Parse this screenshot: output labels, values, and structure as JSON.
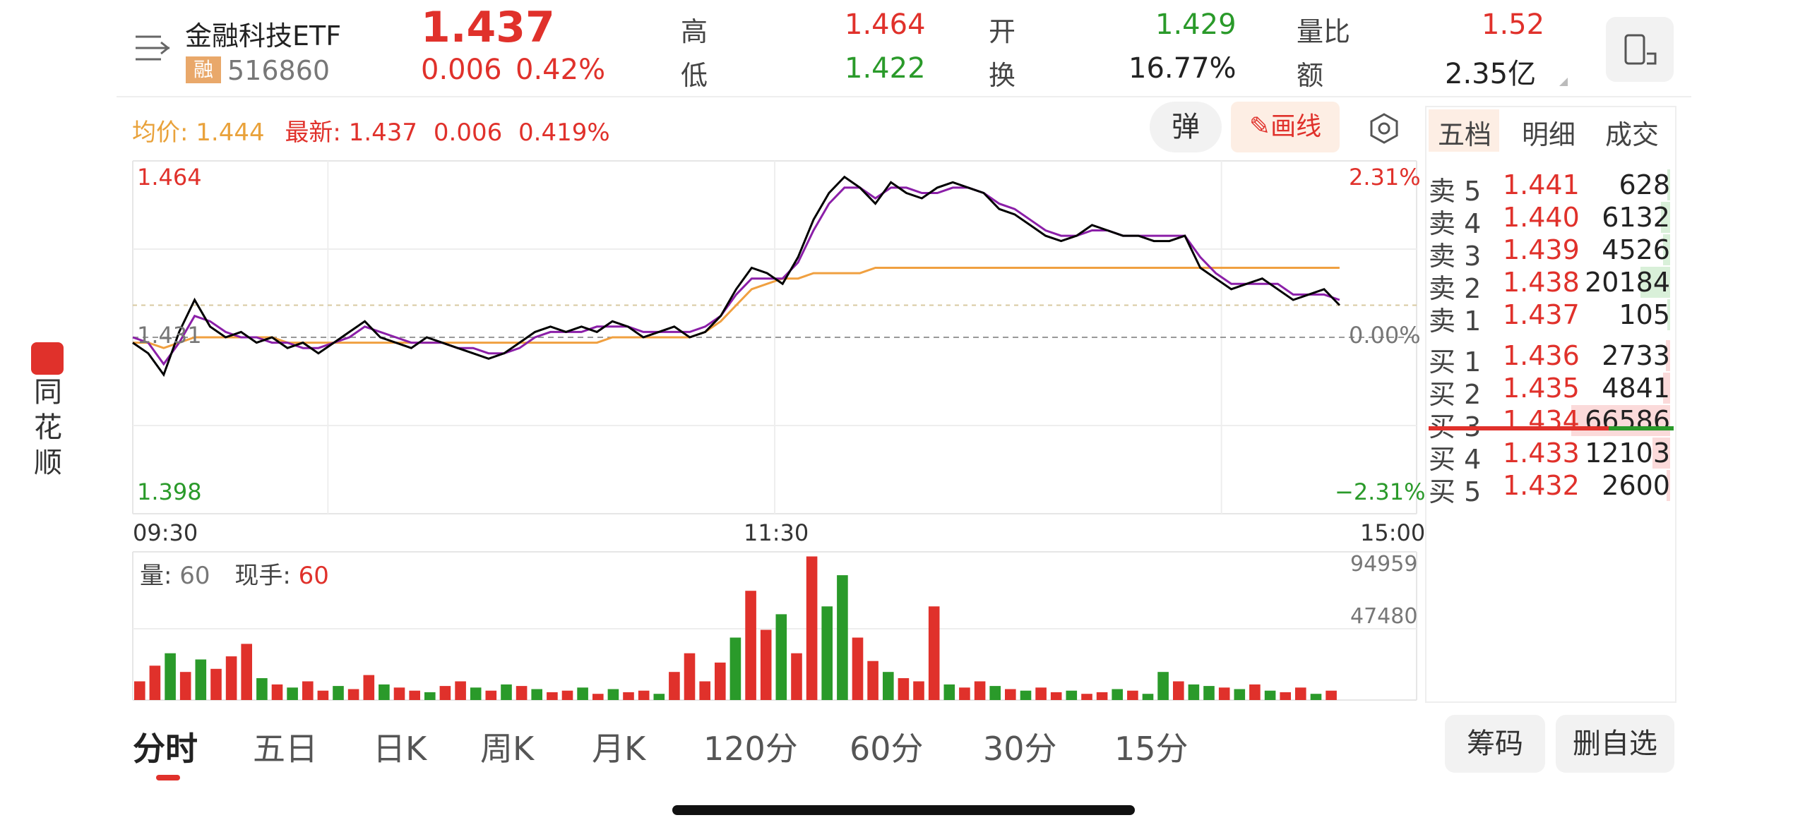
{
  "security": {
    "name": "金融科技ETF",
    "tag": "融",
    "code": "516860",
    "price": "1.437",
    "change": "0.006",
    "change_pct": "0.42%"
  },
  "quote": {
    "high_label": "高",
    "high": "1.464",
    "low_label": "低",
    "low": "1.422",
    "open_label": "开",
    "open": "1.429",
    "turnover_label": "换",
    "turnover": "16.77%",
    "vol_ratio_label": "量比",
    "vol_ratio": "1.52",
    "amount_label": "额",
    "amount": "2.35亿"
  },
  "info_line": {
    "avg_label": "均价:",
    "avg": "1.444",
    "latest_label": "最新:",
    "latest": "1.437",
    "chg": "0.006",
    "chg_pct": "0.419%"
  },
  "toolbar": {
    "danmu_label": "弹",
    "draw_label": "画线"
  },
  "axis": {
    "top_price": "1.464",
    "ref_price": "1.431",
    "bottom_price": "1.398",
    "top_pct": "2.31%",
    "ref_pct": "0.00%",
    "bottom_pct": "−2.31%",
    "time_start": "09:30",
    "time_mid": "11:30",
    "time_end": "15:00",
    "vol_max": "94959",
    "vol_mid": "47480"
  },
  "volume_info": {
    "vol_label": "量:",
    "vol": "60",
    "hand_label": "现手:",
    "hand": "60"
  },
  "orderbook": {
    "tabs": [
      "五档",
      "明细",
      "成交"
    ],
    "sells": [
      {
        "label": "卖 5",
        "price": "1.441",
        "vol": "628"
      },
      {
        "label": "卖 4",
        "price": "1.440",
        "vol": "6132"
      },
      {
        "label": "卖 3",
        "price": "1.439",
        "vol": "4526"
      },
      {
        "label": "卖 2",
        "price": "1.438",
        "vol": "20184"
      },
      {
        "label": "卖 1",
        "price": "1.437",
        "vol": "105"
      }
    ],
    "buys": [
      {
        "label": "买 1",
        "price": "1.436",
        "vol": "2733"
      },
      {
        "label": "买 2",
        "price": "1.435",
        "vol": "4841"
      },
      {
        "label": "买 3",
        "price": "1.434",
        "vol": "66586"
      },
      {
        "label": "买 4",
        "price": "1.433",
        "vol": "12103"
      },
      {
        "label": "买 5",
        "price": "1.432",
        "vol": "2600"
      }
    ]
  },
  "period_tabs": [
    "分时",
    "五日",
    "日K",
    "周K",
    "月K",
    "120分",
    "60分",
    "30分",
    "15分"
  ],
  "bottom_buttons": {
    "chips": "筹码",
    "remove_watch": "删自选"
  },
  "side_brand": {
    "text": [
      "同",
      "花",
      "顺"
    ]
  },
  "colors": {
    "up": "#e0312b",
    "down": "#2a9a2a",
    "avg_line": "#f0a040",
    "price_line": "#000000",
    "ma_line": "#8b1fa8"
  },
  "chart_data": {
    "type": "line",
    "title": "",
    "ylim": [
      1.398,
      1.464
    ],
    "ref_price": 1.431,
    "x_range": [
      "09:30",
      "15:00"
    ],
    "series": [
      {
        "values": [
          1.43,
          1.428,
          1.424,
          1.432,
          1.438,
          1.433,
          1.431,
          1.432,
          1.43,
          1.431,
          1.429,
          1.43,
          1.428,
          1.43,
          1.432,
          1.434,
          1.431,
          1.43,
          1.429,
          1.431,
          1.43,
          1.429,
          1.428,
          1.427,
          1.428,
          1.43,
          1.432,
          1.433,
          1.432,
          1.433,
          1.432,
          1.434,
          1.433,
          1.431,
          1.432,
          1.433,
          1.431,
          1.432,
          1.435,
          1.44,
          1.444,
          1.443,
          1.441,
          1.446,
          1.453,
          1.458,
          1.461,
          1.459,
          1.456,
          1.46,
          1.458,
          1.457,
          1.459,
          1.46,
          1.459,
          1.458,
          1.455,
          1.454,
          1.452,
          1.45,
          1.449,
          1.45,
          1.452,
          1.451,
          1.45,
          1.45,
          1.449,
          1.449,
          1.45,
          1.444,
          1.442,
          1.44,
          1.441,
          1.442,
          1.44,
          1.438,
          1.439,
          1.44,
          1.437
        ]
      },
      {
        "values": [
          1.431,
          1.43,
          1.426,
          1.43,
          1.435,
          1.434,
          1.432,
          1.431,
          1.431,
          1.43,
          1.43,
          1.429,
          1.429,
          1.43,
          1.431,
          1.433,
          1.432,
          1.431,
          1.43,
          1.43,
          1.43,
          1.429,
          1.429,
          1.428,
          1.428,
          1.429,
          1.431,
          1.432,
          1.432,
          1.432,
          1.433,
          1.433,
          1.433,
          1.432,
          1.432,
          1.432,
          1.432,
          1.433,
          1.435,
          1.439,
          1.442,
          1.442,
          1.442,
          1.445,
          1.451,
          1.456,
          1.459,
          1.459,
          1.457,
          1.459,
          1.459,
          1.458,
          1.458,
          1.459,
          1.459,
          1.458,
          1.456,
          1.455,
          1.453,
          1.451,
          1.45,
          1.45,
          1.451,
          1.451,
          1.45,
          1.45,
          1.45,
          1.45,
          1.45,
          1.446,
          1.443,
          1.441,
          1.441,
          1.441,
          1.441,
          1.439,
          1.439,
          1.439,
          1.438
        ]
      },
      {
        "values": [
          1.43,
          1.43,
          1.429,
          1.43,
          1.431,
          1.431,
          1.431,
          1.431,
          1.431,
          1.431,
          1.43,
          1.43,
          1.43,
          1.43,
          1.43,
          1.43,
          1.43,
          1.43,
          1.43,
          1.43,
          1.43,
          1.43,
          1.43,
          1.43,
          1.43,
          1.43,
          1.43,
          1.43,
          1.43,
          1.43,
          1.43,
          1.431,
          1.431,
          1.431,
          1.431,
          1.431,
          1.431,
          1.432,
          1.434,
          1.437,
          1.44,
          1.441,
          1.442,
          1.442,
          1.443,
          1.443,
          1.443,
          1.443,
          1.444,
          1.444,
          1.444,
          1.444,
          1.444,
          1.444,
          1.444,
          1.444,
          1.444,
          1.444,
          1.444,
          1.444,
          1.444,
          1.444,
          1.444,
          1.444,
          1.444,
          1.444,
          1.444,
          1.444,
          1.444,
          1.444,
          1.444,
          1.444,
          1.444,
          1.444,
          1.444,
          1.444,
          1.444,
          1.444,
          1.444
        ]
      }
    ],
    "volume": {
      "ylim": [
        0,
        94959
      ],
      "values": [
        12000,
        22000,
        30000,
        18000,
        26000,
        20000,
        28000,
        36000,
        14000,
        10000,
        8000,
        12000,
        6000,
        9000,
        7000,
        16000,
        10000,
        8000,
        6000,
        5000,
        9000,
        12000,
        8000,
        6000,
        10000,
        9000,
        7000,
        5000,
        6000,
        8000,
        4000,
        7000,
        5000,
        6000,
        4000,
        18000,
        30000,
        12000,
        24000,
        40000,
        70000,
        45000,
        55000,
        30000,
        92000,
        60000,
        80000,
        40000,
        25000,
        18000,
        14000,
        12000,
        60000,
        10000,
        8000,
        12000,
        9000,
        7000,
        6000,
        8000,
        5000,
        6000,
        4000,
        5000,
        7000,
        6000,
        4000,
        18000,
        12000,
        10000,
        9000,
        8000,
        7000,
        10000,
        6000,
        5000,
        8000,
        4000,
        6000
      ],
      "directions": [
        "up",
        "up",
        "down",
        "up",
        "down",
        "up",
        "up",
        "up",
        "down",
        "up",
        "down",
        "up",
        "up",
        "down",
        "up",
        "up",
        "down",
        "up",
        "up",
        "down",
        "up",
        "up",
        "down",
        "up",
        "down",
        "up",
        "down",
        "up",
        "up",
        "down",
        "up",
        "down",
        "up",
        "up",
        "down",
        "up",
        "up",
        "up",
        "up",
        "down",
        "up",
        "up",
        "down",
        "up",
        "up",
        "down",
        "down",
        "up",
        "up",
        "down",
        "up",
        "up",
        "up",
        "down",
        "up",
        "up",
        "down",
        "up",
        "down",
        "up",
        "up",
        "down",
        "up",
        "up",
        "down",
        "up",
        "down",
        "down",
        "up",
        "down",
        "down",
        "up",
        "down",
        "up",
        "down",
        "up",
        "up",
        "down",
        "up"
      ]
    }
  }
}
